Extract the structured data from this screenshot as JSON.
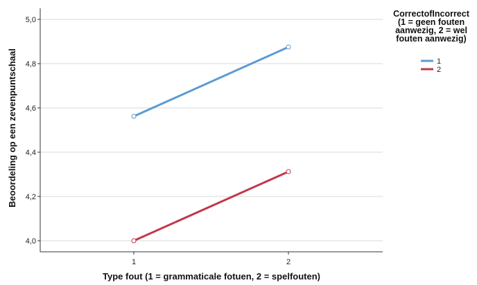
{
  "chart_data": {
    "type": "line",
    "categories": [
      "1",
      "2"
    ],
    "series": [
      {
        "name": "1",
        "values": [
          4.562,
          4.875
        ],
        "color": "#5b9bd5"
      },
      {
        "name": "2",
        "values": [
          4.0,
          4.312
        ],
        "color": "#c0394b"
      }
    ],
    "xlabel": "Type fout (1 = grammaticale fotuen, 2 = spelfouten)",
    "ylabel": "Beoordeling op een zevenpuntschaal",
    "ylim": [
      3.95,
      5.05
    ],
    "yticks": [
      "4,0",
      "4,2",
      "4,4",
      "4,6",
      "4,8",
      "5,0"
    ],
    "ytick_values": [
      4.0,
      4.2,
      4.4,
      4.6,
      4.8,
      5.0
    ],
    "grid": "horizontal",
    "legend": {
      "title_lines": [
        "CorrectofIncorrect",
        "(1 = geen fouten",
        "aanwezig, 2 = wel",
        "fouten aanwezig)"
      ],
      "placement": "right"
    }
  }
}
